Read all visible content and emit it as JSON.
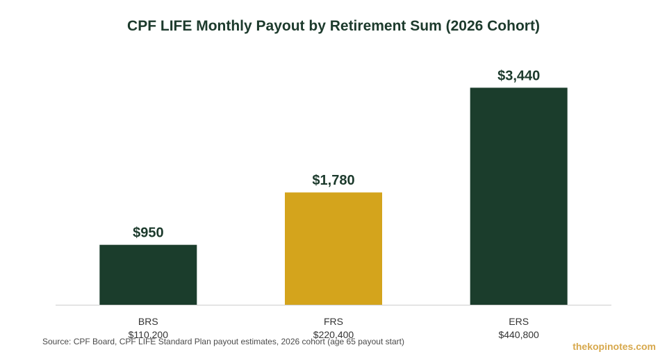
{
  "chart_data": {
    "type": "bar",
    "title": "CPF LIFE Monthly Payout by Retirement Sum (2026 Cohort)",
    "xlabel": "",
    "ylabel": "",
    "categories": [
      "BRS",
      "FRS",
      "ERS"
    ],
    "category_sublabels": [
      "$110,200",
      "$220,400",
      "$440,800"
    ],
    "values": [
      950,
      1780,
      3440
    ],
    "value_labels": [
      "$950",
      "$1,780",
      "$3,440"
    ],
    "bar_colors": [
      "#1b3d2c",
      "#d4a41c",
      "#1b3d2c"
    ],
    "ylim": [
      0,
      3950
    ],
    "grid": false,
    "legend": "none"
  },
  "source_note": "Source: CPF Board, CPF LIFE Standard Plan payout estimates, 2026 cohort (age 65 payout start)",
  "watermark": "thekopinotes.com",
  "colors": {
    "title": "#1c3a2c",
    "baseline": "#cccccc",
    "tick_text": "#333333",
    "value_text": "#1c3a2c",
    "watermark": "#d7a84c"
  }
}
